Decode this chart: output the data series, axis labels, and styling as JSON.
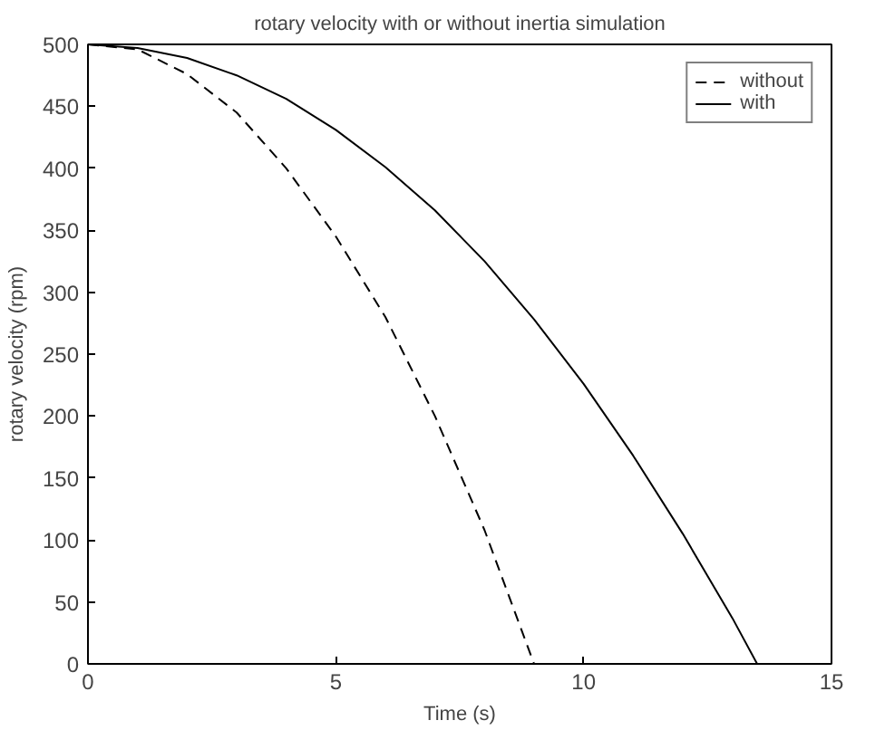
{
  "chart_data": {
    "type": "line",
    "title": "rotary velocity with or without inertia simulation",
    "xlabel": "Time (s)",
    "ylabel": "rotary velocity (rpm)",
    "xlim": [
      0,
      15
    ],
    "xticks": [
      0,
      5,
      10,
      15
    ],
    "ylim": [
      0,
      500
    ],
    "yticks": [
      0,
      50,
      100,
      150,
      200,
      250,
      300,
      350,
      400,
      450,
      500
    ],
    "grid": false,
    "legend": "top right",
    "series": [
      {
        "name": "without",
        "color": "#000000",
        "line_style": "dashed",
        "x": [
          0,
          1,
          2,
          3,
          4,
          5,
          6,
          7,
          8,
          9
        ],
        "values": [
          500,
          496,
          476,
          445,
          400,
          345,
          280,
          200,
          108,
          0
        ]
      },
      {
        "name": "with",
        "color": "#000000",
        "line_style": "solid",
        "x": [
          0,
          1,
          2,
          3,
          4,
          5,
          6,
          7,
          8,
          9,
          10,
          11,
          12,
          13,
          13.5
        ],
        "values": [
          500,
          497,
          489,
          475,
          456,
          431,
          401,
          366,
          325,
          278,
          226,
          168,
          105,
          37,
          0
        ]
      }
    ]
  }
}
